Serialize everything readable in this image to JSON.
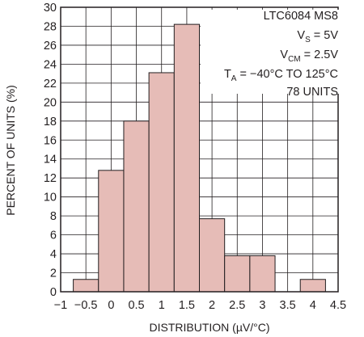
{
  "chart_data": {
    "type": "bar",
    "xlabel": "DISTRIBUTION (µV/°C)",
    "ylabel": "PERCENT OF UNITS (%)",
    "xlim": [
      -1,
      4.5
    ],
    "ylim": [
      0,
      30
    ],
    "x_ticks": [
      "−1",
      "−0.5",
      "0",
      "0.5",
      "1",
      "1.5",
      "2",
      "2.5",
      "3",
      "3.5",
      "4",
      "4.5"
    ],
    "y_ticks": [
      "0",
      "2",
      "4",
      "6",
      "8",
      "10",
      "12",
      "14",
      "16",
      "18",
      "20",
      "22",
      "24",
      "26",
      "28",
      "30"
    ],
    "grid": true,
    "bin_width": 0.5,
    "bins": [
      {
        "start": -0.75,
        "value": 1.3
      },
      {
        "start": -0.25,
        "value": 12.8
      },
      {
        "start": 0.25,
        "value": 18.0
      },
      {
        "start": 0.75,
        "value": 23.1
      },
      {
        "start": 1.25,
        "value": 28.2
      },
      {
        "start": 1.75,
        "value": 7.7
      },
      {
        "start": 2.25,
        "value": 3.8
      },
      {
        "start": 2.75,
        "value": 3.8
      },
      {
        "start": 3.75,
        "value": 1.3
      }
    ],
    "colors": {
      "bar_fill": "#e6bcb7",
      "bar_stroke": "#231f20",
      "grid": "#231f20",
      "text": "#231f20"
    },
    "annotation": {
      "line1": "LTC6084 MS8",
      "line2": {
        "main": "V",
        "sub": "S",
        "rest": " = 5V"
      },
      "line3": {
        "main": "V",
        "sub": "CM",
        "rest": " = 2.5V"
      },
      "line4": {
        "main": "T",
        "sub": "A",
        "rest": " = −40°C TO 125°C"
      },
      "line5": "78 UNITS"
    }
  }
}
